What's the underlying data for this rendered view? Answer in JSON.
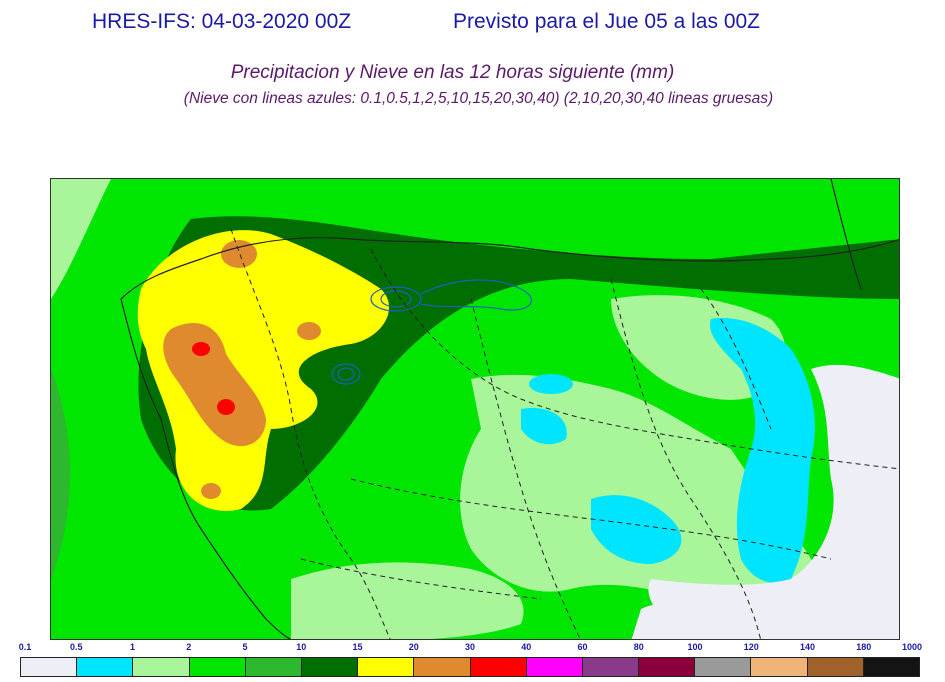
{
  "header": {
    "run": "HRES-IFS: 04-03-2020 00Z",
    "valid": "Previsto para el  Jue 05 a las 00Z"
  },
  "title": {
    "main": "Precipitacion y Nieve en las 12 horas siguiente (mm)",
    "sub": "(Nieve con lineas azules: 0.1,0.5,1,2,5,10,15,20,30,40)  (2,10,20,30,40 lineas gruesas)"
  },
  "legend": {
    "ticks": [
      "0.1",
      "0.5",
      "1",
      "2",
      "5",
      "10",
      "15",
      "20",
      "30",
      "40",
      "60",
      "80",
      "100",
      "120",
      "140",
      "180",
      "1000"
    ],
    "colors": [
      "#eeeef6",
      "#00e5ff",
      "#a8f59a",
      "#00e600",
      "#2eb82e",
      "#006e00",
      "#ffff00",
      "#e08a30",
      "#ff0000",
      "#ff00ff",
      "#8a3a8a",
      "#8a003a",
      "#9a9a9a",
      "#f0b47a",
      "#a0622a",
      "#141414"
    ]
  },
  "map": {
    "region": "Peninsula Iberica",
    "features": [
      "precipitation-field",
      "snow-contours",
      "coastline",
      "borders"
    ]
  }
}
